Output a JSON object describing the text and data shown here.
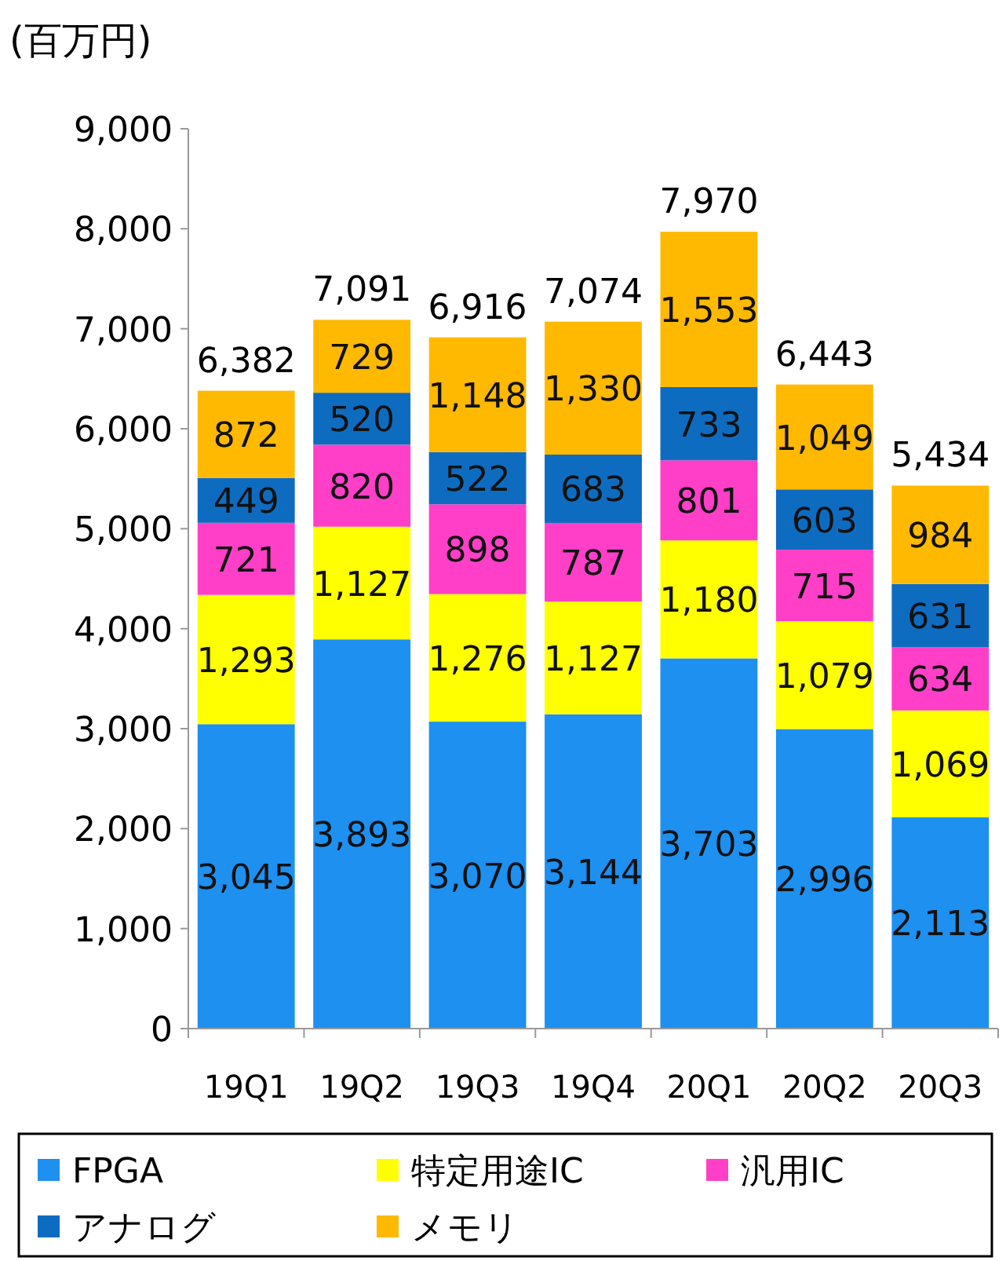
{
  "chart_data": {
    "type": "bar",
    "stacked": true,
    "ylabel": "(百万円)",
    "categories": [
      "19Q1",
      "19Q2",
      "19Q3",
      "19Q4",
      "20Q1",
      "20Q2",
      "20Q3"
    ],
    "series": [
      {
        "name": "FPGA",
        "color": "#1e90f0",
        "values": [
          3045,
          3893,
          3070,
          3144,
          3703,
          2996,
          2113
        ],
        "value_labels": [
          "3,045",
          "3,893",
          "3,070",
          "3,144",
          "3,703",
          "2,996",
          "2,113"
        ]
      },
      {
        "name": "特定用途IC",
        "color": "#ffff00",
        "values": [
          1293,
          1127,
          1276,
          1127,
          1180,
          1079,
          1069
        ],
        "value_labels": [
          "1,293",
          "1,127",
          "1,276",
          "1,127",
          "1,180",
          "1,079",
          "1,069"
        ]
      },
      {
        "name": "汎用IC",
        "color": "#ff3fc8",
        "values": [
          721,
          820,
          898,
          787,
          801,
          715,
          634
        ],
        "value_labels": [
          "721",
          "820",
          "898",
          "787",
          "801",
          "715",
          "634"
        ]
      },
      {
        "name": "アナログ",
        "color": "#0e6cc0",
        "values": [
          449,
          520,
          522,
          683,
          733,
          603,
          631
        ],
        "value_labels": [
          "449",
          "520",
          "522",
          "683",
          "733",
          "603",
          "631"
        ]
      },
      {
        "name": "メモリ",
        "color": "#ffb900",
        "values": [
          872,
          729,
          1148,
          1330,
          1553,
          1049,
          984
        ],
        "value_labels": [
          "872",
          "729",
          "1,148",
          "1,330",
          "1,553",
          "1,049",
          "984"
        ]
      }
    ],
    "totals": [
      "6,382",
      "7,091",
      "6,916",
      "7,074",
      "7,970",
      "6,443",
      "5,434"
    ],
    "ylim": [
      0,
      9000
    ],
    "yticks": [
      {
        "value": 0,
        "label": "0"
      },
      {
        "value": 1000,
        "label": "1,000"
      },
      {
        "value": 2000,
        "label": "2,000"
      },
      {
        "value": 3000,
        "label": "3,000"
      },
      {
        "value": 4000,
        "label": "4,000"
      },
      {
        "value": 5000,
        "label": "5,000"
      },
      {
        "value": 6000,
        "label": "6,000"
      },
      {
        "value": 7000,
        "label": "7,000"
      },
      {
        "value": 8000,
        "label": "8,000"
      },
      {
        "value": 9000,
        "label": "9,000"
      }
    ],
    "grid": false,
    "legend": "bottom"
  }
}
